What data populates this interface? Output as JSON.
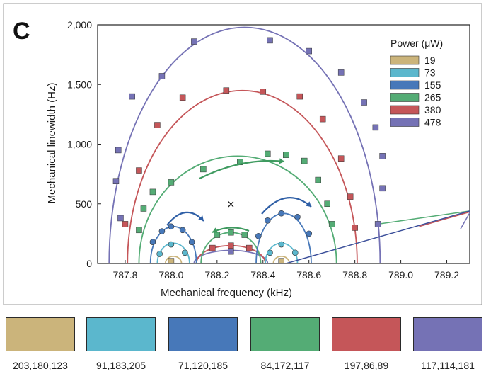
{
  "panel_label": "C",
  "chart_data": {
    "type": "scatter",
    "title": "",
    "xlabel": "Mechanical frequency (kHz)",
    "ylabel": "Mechanical linewidth (Hz)",
    "xlim": [
      787.68,
      789.3
    ],
    "ylim": [
      0,
      2000
    ],
    "xticks": [
      787.8,
      788.0,
      788.2,
      788.4,
      788.6,
      788.8,
      789.0,
      789.2
    ],
    "xtick_labels": [
      "787.8",
      "788.0",
      "788.2",
      "788.4",
      "788.6",
      "788.8",
      "789.0",
      "789.2"
    ],
    "yticks": [
      0,
      500,
      1000,
      1500,
      2000
    ],
    "ytick_labels": [
      "0",
      "500",
      "1,000",
      "1,500",
      "2,000"
    ],
    "legend": {
      "title": "Power (μW)",
      "position": "top-right"
    },
    "center_marker": {
      "symbol": "×",
      "x": 788.26,
      "y": 460
    },
    "series": [
      {
        "name": "19",
        "color": "#cbb47b",
        "marker": "square",
        "points": [
          [
            788.0,
            20
          ],
          [
            788.48,
            20
          ]
        ],
        "fit": [
          {
            "cx": 788.01,
            "r": 0.035,
            "yscale": 60
          },
          {
            "cx": 788.48,
            "r": 0.035,
            "yscale": 60
          }
        ]
      },
      {
        "name": "73",
        "color": "#5bb7cd",
        "marker": "circle",
        "points": [
          [
            787.95,
            80
          ],
          [
            788.0,
            160
          ],
          [
            788.06,
            90
          ],
          [
            788.43,
            90
          ],
          [
            788.48,
            160
          ],
          [
            788.54,
            90
          ]
        ],
        "fit": [
          {
            "cx": 788.01,
            "r": 0.07,
            "yscale": 170
          },
          {
            "cx": 788.48,
            "r": 0.07,
            "yscale": 170
          }
        ]
      },
      {
        "name": "155",
        "color": "#4778b9",
        "marker": "circle",
        "points": [
          [
            787.92,
            180
          ],
          [
            787.96,
            270
          ],
          [
            788.0,
            310
          ],
          [
            788.05,
            280
          ],
          [
            788.09,
            180
          ],
          [
            788.38,
            230
          ],
          [
            788.42,
            360
          ],
          [
            788.48,
            420
          ],
          [
            788.55,
            390
          ],
          [
            788.6,
            250
          ]
        ],
        "fit": [
          {
            "cx": 788.01,
            "r": 0.1,
            "yscale": 310
          },
          {
            "cx": 788.49,
            "r": 0.12,
            "yscale": 420
          }
        ]
      },
      {
        "name": "265",
        "color": "#54ac75",
        "marker": "square",
        "points": [
          [
            787.86,
            280
          ],
          [
            787.88,
            460
          ],
          [
            787.92,
            600
          ],
          [
            788.0,
            680
          ],
          [
            788.14,
            790
          ],
          [
            788.3,
            850
          ],
          [
            788.42,
            920
          ],
          [
            788.5,
            910
          ],
          [
            788.58,
            860
          ],
          [
            788.64,
            700
          ],
          [
            788.68,
            500
          ],
          [
            788.7,
            330
          ],
          [
            788.2,
            240
          ],
          [
            788.26,
            260
          ],
          [
            788.32,
            240
          ]
        ],
        "fit": [
          {
            "cx": 788.29,
            "r": 0.43,
            "yscale": 900
          },
          {
            "cx": 788.26,
            "r": 0.13,
            "yscale": 260
          }
        ]
      },
      {
        "name": "380",
        "color": "#c55659",
        "marker": "square",
        "points": [
          [
            787.8,
            330
          ],
          [
            787.86,
            780
          ],
          [
            787.94,
            1160
          ],
          [
            788.05,
            1390
          ],
          [
            788.24,
            1450
          ],
          [
            788.4,
            1440
          ],
          [
            788.56,
            1400
          ],
          [
            788.66,
            1210
          ],
          [
            788.74,
            880
          ],
          [
            788.78,
            560
          ],
          [
            788.8,
            300
          ],
          [
            788.18,
            130
          ],
          [
            788.26,
            150
          ],
          [
            788.34,
            130
          ]
        ],
        "fit": [
          {
            "cx": 788.31,
            "r": 0.5,
            "yscale": 1450
          },
          {
            "cx": 788.26,
            "r": 0.15,
            "yscale": 150
          }
        ]
      },
      {
        "name": "478",
        "color": "#7572b5",
        "marker": "square",
        "points": [
          [
            787.78,
            380
          ],
          [
            787.76,
            690
          ],
          [
            787.77,
            950
          ],
          [
            787.83,
            1400
          ],
          [
            787.96,
            1570
          ],
          [
            788.1,
            1860
          ],
          [
            788.43,
            1870
          ],
          [
            788.6,
            1780
          ],
          [
            788.74,
            1600
          ],
          [
            788.84,
            1350
          ],
          [
            788.89,
            1140
          ],
          [
            788.92,
            900
          ],
          [
            788.92,
            630
          ],
          [
            788.9,
            330
          ],
          [
            788.26,
            100
          ]
        ],
        "fit": [
          {
            "cx": 788.32,
            "r": 0.59,
            "yscale": 1980
          },
          {
            "cx": 788.26,
            "r": 0.16,
            "yscale": 110
          }
        ]
      }
    ],
    "tail_line": {
      "x": [
        788.5,
        789.3
      ],
      "y": [
        0,
        440
      ]
    }
  },
  "swatches": [
    {
      "color": "#cbb47b",
      "label": "203,180,123"
    },
    {
      "color": "#5bb7cd",
      "label": "91,183,205"
    },
    {
      "color": "#4778b9",
      "label": "71,120,185"
    },
    {
      "color": "#54ac75",
      "label": "84,172,117"
    },
    {
      "color": "#c55659",
      "label": "197,86,89"
    },
    {
      "color": "#7572b5",
      "label": "117,114,181"
    }
  ]
}
